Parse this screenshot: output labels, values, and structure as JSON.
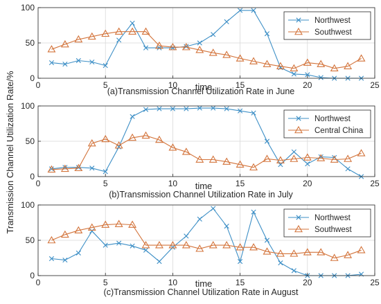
{
  "figure": {
    "ylabel": "Transmission Channel Utilization Rate/%",
    "colors": {
      "northwest": "#3d8fc6",
      "other": "#d3733a",
      "axis": "#262626",
      "grid": "#d9d9d9"
    }
  },
  "chart_data": [
    {
      "type": "line",
      "caption": "(a)Transmission Channel Utilization Rate in June",
      "xlabel": "time",
      "xlim": [
        0,
        25
      ],
      "ylim": [
        0,
        100
      ],
      "xticks": [
        0,
        5,
        10,
        15,
        20,
        25
      ],
      "yticks": [
        0,
        50,
        100
      ],
      "grid": true,
      "legend_position": "top-right",
      "x": [
        1,
        2,
        3,
        4,
        5,
        6,
        7,
        8,
        9,
        10,
        11,
        12,
        13,
        14,
        15,
        16,
        17,
        18,
        19,
        20,
        21,
        22,
        23,
        24
      ],
      "series": [
        {
          "name": "Northwest",
          "marker": "x",
          "values": [
            22,
            20,
            25,
            23,
            18,
            54,
            78,
            43,
            43,
            43,
            45,
            50,
            62,
            80,
            96,
            96,
            63,
            15,
            6,
            5,
            1,
            0,
            0,
            0
          ]
        },
        {
          "name": "Southwest",
          "marker": "triangle",
          "values": [
            41,
            48,
            55,
            59,
            63,
            66,
            66,
            66,
            46,
            44,
            44,
            40,
            36,
            33,
            28,
            24,
            20,
            17,
            14,
            22,
            20,
            14,
            17,
            28
          ]
        }
      ]
    },
    {
      "type": "line",
      "caption": "(b)Transmission Channel Utilization Rate in July",
      "xlabel": "time",
      "xlim": [
        0,
        25
      ],
      "ylim": [
        0,
        100
      ],
      "xticks": [
        0,
        5,
        10,
        15,
        20,
        25
      ],
      "yticks": [
        0,
        50,
        100
      ],
      "grid": true,
      "legend_position": "top-right",
      "x": [
        1,
        2,
        3,
        4,
        5,
        6,
        7,
        8,
        9,
        10,
        11,
        12,
        13,
        14,
        15,
        16,
        17,
        18,
        19,
        20,
        21,
        22,
        23,
        24
      ],
      "series": [
        {
          "name": "Northwest",
          "marker": "x",
          "values": [
            11,
            13,
            13,
            12,
            7,
            42,
            85,
            95,
            96,
            96,
            96,
            97,
            97,
            96,
            93,
            90,
            50,
            17,
            35,
            18,
            28,
            27,
            11,
            0
          ]
        },
        {
          "name": "Central China",
          "marker": "triangle",
          "values": [
            10,
            11,
            12,
            47,
            53,
            44,
            55,
            58,
            52,
            41,
            35,
            24,
            24,
            21,
            17,
            13,
            25,
            23,
            25,
            27,
            26,
            24,
            25,
            33
          ]
        }
      ]
    },
    {
      "type": "line",
      "caption": "(c)Transmission Channel Utilization Rate in August",
      "xlabel": "time",
      "xlim": [
        0,
        25
      ],
      "ylim": [
        0,
        100
      ],
      "xticks": [
        0,
        5,
        10,
        15,
        20,
        25
      ],
      "yticks": [
        0,
        50,
        100
      ],
      "grid": true,
      "legend_position": "top-right",
      "x": [
        1,
        2,
        3,
        4,
        5,
        6,
        7,
        8,
        9,
        10,
        11,
        12,
        13,
        14,
        15,
        16,
        17,
        18,
        19,
        20,
        21,
        22,
        23,
        24
      ],
      "series": [
        {
          "name": "Northwest",
          "marker": "x",
          "values": [
            24,
            22,
            32,
            63,
            43,
            46,
            42,
            36,
            20,
            40,
            56,
            80,
            95,
            70,
            20,
            90,
            50,
            18,
            7,
            0,
            0,
            0,
            0,
            2
          ]
        },
        {
          "name": "Southwest",
          "marker": "triangle",
          "values": [
            50,
            58,
            64,
            68,
            72,
            73,
            72,
            43,
            43,
            43,
            43,
            38,
            43,
            43,
            40,
            40,
            34,
            31,
            31,
            33,
            33,
            25,
            29,
            36
          ]
        }
      ]
    }
  ]
}
